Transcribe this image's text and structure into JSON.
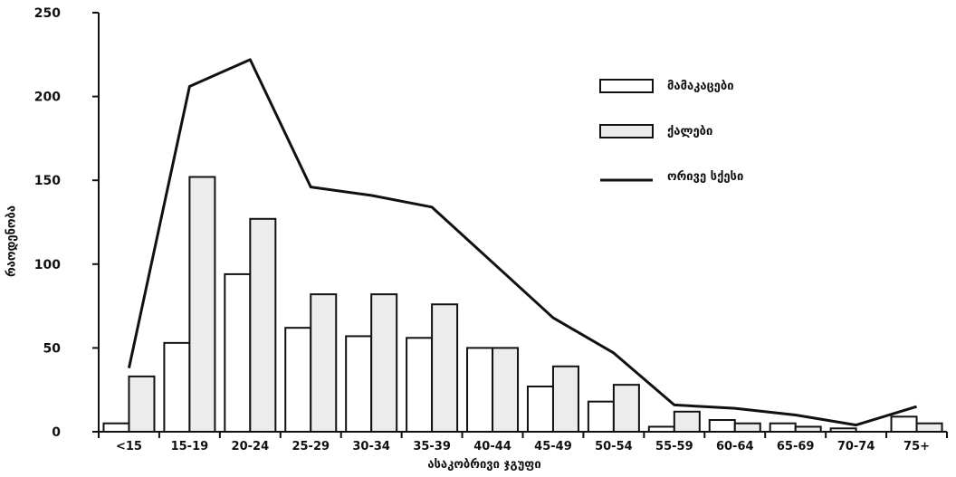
{
  "chart_data": {
    "type": "bar",
    "title": "",
    "xlabel": "ასაკობრივი ჯგუფი",
    "ylabel": "რაოდენობა",
    "ylim": [
      0,
      250
    ],
    "yticks": [
      0,
      50,
      100,
      150,
      200,
      250
    ],
    "categories": [
      "<15",
      "15-19",
      "20-24",
      "25-29",
      "30-34",
      "35-39",
      "40-44",
      "45-49",
      "50-54",
      "55-59",
      "60-64",
      "65-69",
      "70-74",
      "75+"
    ],
    "series": [
      {
        "name": "მამაკაცები",
        "kind": "bar",
        "values": [
          5,
          53,
          94,
          62,
          57,
          56,
          50,
          27,
          18,
          3,
          7,
          5,
          2,
          9
        ]
      },
      {
        "name": "ქალები",
        "kind": "bar",
        "values": [
          33,
          152,
          127,
          82,
          82,
          76,
          50,
          39,
          28,
          12,
          5,
          3,
          0,
          5
        ]
      },
      {
        "name": "ორივე სქესი",
        "kind": "line",
        "values": [
          38,
          206,
          222,
          146,
          141,
          134,
          101,
          68,
          47,
          16,
          14,
          10,
          4,
          15
        ]
      }
    ],
    "legend_position": "top-right",
    "grid": false
  },
  "colors": {
    "male_fill": "#ffffff",
    "female_fill": "#ececec",
    "stroke": "#111111",
    "line": "#111111"
  }
}
